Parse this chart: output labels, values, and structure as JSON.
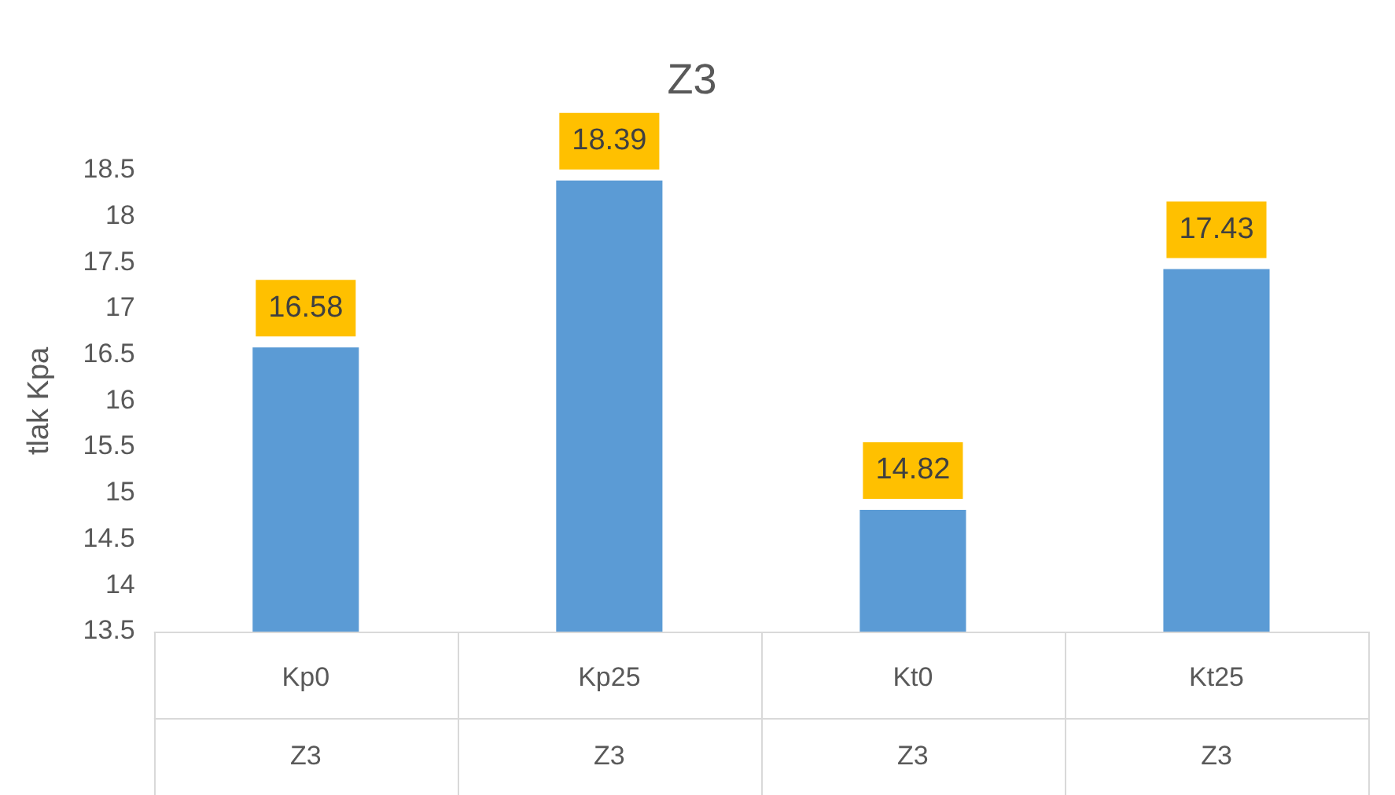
{
  "chart_data": {
    "type": "bar",
    "title": "Z3",
    "ylabel": "tlak Kpa",
    "categories": [
      "Kp0",
      "Kp25",
      "Kt0",
      "Kt25"
    ],
    "values": [
      16.58,
      18.39,
      14.82,
      17.43
    ],
    "color": "#5b9bd5",
    "ylim": [
      13.5,
      18.5
    ],
    "yticks": [
      13.5,
      14,
      14.5,
      15,
      15.5,
      16,
      16.5,
      17,
      17.5,
      18,
      18.5
    ],
    "grid": false,
    "legend": false,
    "data_labels": true,
    "annotations": [
      "Z3",
      "Z3",
      "Z3",
      "Z3"
    ]
  }
}
